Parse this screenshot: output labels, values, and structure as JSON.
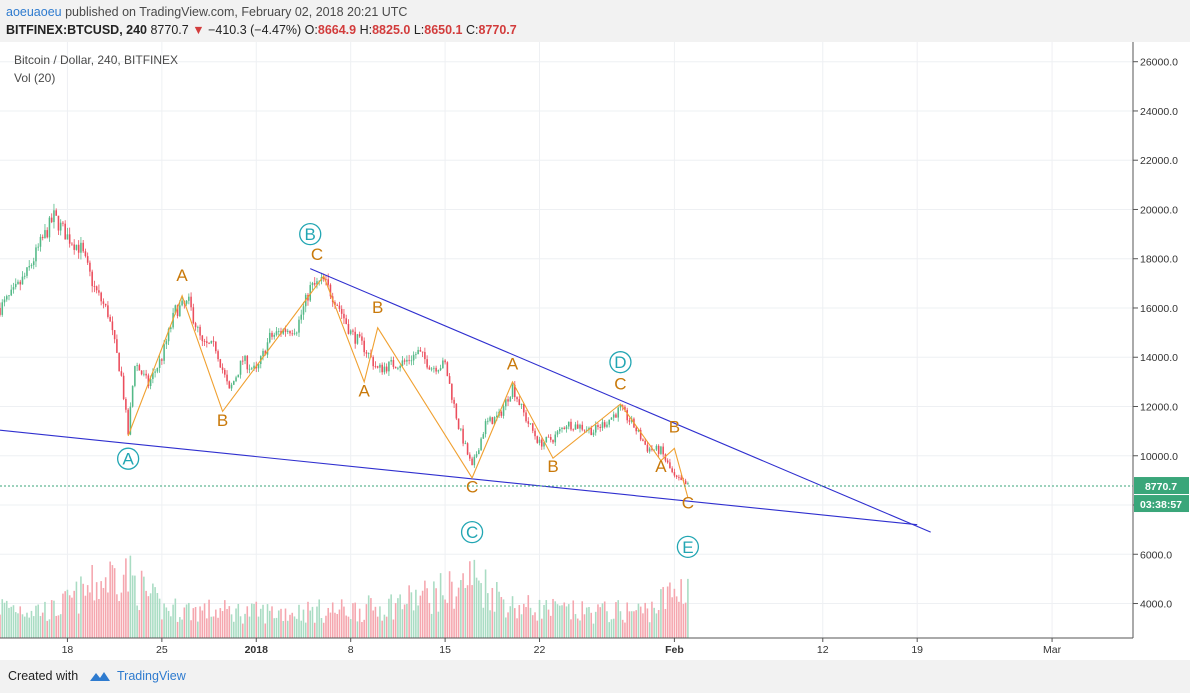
{
  "header": {
    "user": "aoeuaoeu",
    "published": " published on TradingView.com, February 02, 2018 20:21 UTC",
    "symbol": "BITFINEX:BTCUSD, 240",
    "last": "8770.7",
    "change": "−410.3 (−4.47%)",
    "open_label": "O:",
    "open": "8664.9",
    "high_label": "H:",
    "high": "8825.0",
    "low_label": "L:",
    "low": "8650.1",
    "close_label": "C:",
    "close": "8770.7"
  },
  "footer": {
    "created": "Created with",
    "brand": "TradingView"
  },
  "chart_data": {
    "type": "candlestick",
    "title": "Bitcoin / Dollar, 240, BITFINEX",
    "indicator": "Vol (20)",
    "ylim": [
      2600,
      26800
    ],
    "yticks": [
      "4000.0",
      "6000.0",
      "8000.0",
      "10000.0",
      "12000.0",
      "14000.0",
      "16000.0",
      "18000.0",
      "20000.0",
      "22000.0",
      "24000.0",
      "26000.0"
    ],
    "xticks": [
      "18",
      "25",
      "2018",
      "8",
      "15",
      "22",
      "Feb",
      "12",
      "19",
      "Mar"
    ],
    "xlim": [
      "2017-12-13",
      "2018-03-07"
    ],
    "last_price_label": "8770.7",
    "countdown_label": "03:38:57",
    "colors": {
      "up": "#53b987",
      "down": "#eb4d5c",
      "trendline": "#2f2fcf",
      "wave": "#f0a030",
      "label_abc": "#c9790a",
      "label_circle": "#22a6b3"
    },
    "price_path": [
      [
        "2017-12-13",
        16000
      ],
      [
        "2017-12-14",
        16600
      ],
      [
        "2017-12-15",
        17400
      ],
      [
        "2017-12-16",
        18600
      ],
      [
        "2017-12-17",
        19700
      ],
      [
        "2017-12-18",
        18900
      ],
      [
        "2017-12-19",
        18400
      ],
      [
        "2017-12-20",
        16800
      ],
      [
        "2017-12-21",
        15800
      ],
      [
        "2017-12-22",
        13200
      ],
      [
        "2017-12-22 12:00",
        10900
      ],
      [
        "2017-12-23",
        13800
      ],
      [
        "2017-12-24",
        12900
      ],
      [
        "2017-12-25",
        14000
      ],
      [
        "2017-12-26",
        15900
      ],
      [
        "2017-12-27",
        16200
      ],
      [
        "2017-12-28",
        14500
      ],
      [
        "2017-12-29",
        14400
      ],
      [
        "2017-12-30",
        12600
      ],
      [
        "2017-12-31",
        13900
      ],
      [
        "2018-01-01",
        13400
      ],
      [
        "2018-01-02",
        14800
      ],
      [
        "2018-01-03",
        15100
      ],
      [
        "2018-01-04",
        15200
      ],
      [
        "2018-01-05",
        16800
      ],
      [
        "2018-01-06",
        17100
      ],
      [
        "2018-01-07",
        16200
      ],
      [
        "2018-01-08",
        15000
      ],
      [
        "2018-01-09",
        14400
      ],
      [
        "2018-01-10",
        13500
      ],
      [
        "2018-01-11",
        13700
      ],
      [
        "2018-01-12",
        13800
      ],
      [
        "2018-01-13",
        14200
      ],
      [
        "2018-01-14",
        13600
      ],
      [
        "2018-01-15",
        13700
      ],
      [
        "2018-01-16",
        11200
      ],
      [
        "2018-01-17",
        9500
      ],
      [
        "2018-01-18",
        11300
      ],
      [
        "2018-01-19",
        11600
      ],
      [
        "2018-01-20",
        12800
      ],
      [
        "2018-01-21",
        11500
      ],
      [
        "2018-01-22",
        10500
      ],
      [
        "2018-01-23",
        10700
      ],
      [
        "2018-01-24",
        11300
      ],
      [
        "2018-01-25",
        11200
      ],
      [
        "2018-01-26",
        11000
      ],
      [
        "2018-01-27",
        11400
      ],
      [
        "2018-01-28",
        11900
      ],
      [
        "2018-01-29",
        11200
      ],
      [
        "2018-01-30",
        10300
      ],
      [
        "2018-01-31",
        10200
      ],
      [
        "2018-02-01",
        9100
      ],
      [
        "2018-02-02",
        8770
      ]
    ],
    "volume_profile": [
      [
        "2017-12-13",
        0.35
      ],
      [
        "2017-12-17",
        0.3
      ],
      [
        "2017-12-22",
        0.75
      ],
      [
        "2017-12-25",
        0.32
      ],
      [
        "2018-01-01",
        0.28
      ],
      [
        "2018-01-07",
        0.3
      ],
      [
        "2018-01-10",
        0.33
      ],
      [
        "2018-01-16",
        0.55
      ],
      [
        "2018-01-17",
        0.68
      ],
      [
        "2018-01-20",
        0.35
      ],
      [
        "2018-01-25",
        0.28
      ],
      [
        "2018-01-30",
        0.3
      ],
      [
        "2018-02-02",
        0.6
      ]
    ],
    "trendlines": [
      {
        "from": [
          "2017-12-11",
          11150
        ],
        "to": [
          "2018-02-19",
          7200
        ]
      },
      {
        "from": [
          "2018-01-05",
          17600
        ],
        "to": [
          "2018-02-20",
          6900
        ]
      }
    ],
    "wave_path": [
      [
        "2017-12-22 12:00",
        10800
      ],
      [
        "2017-12-26 12:00",
        16500
      ],
      [
        "2017-12-29 12:00",
        11800
      ],
      [
        "2018-01-06",
        17300
      ],
      [
        "2018-01-09",
        13000
      ],
      [
        "2018-01-10",
        15200
      ],
      [
        "2018-01-17",
        9100
      ],
      [
        "2018-01-20",
        13000
      ],
      [
        "2018-01-23",
        9900
      ],
      [
        "2018-01-28",
        12100
      ],
      [
        "2018-01-31",
        9800
      ],
      [
        "2018-02-01",
        10300
      ],
      [
        "2018-02-02",
        8300
      ]
    ],
    "wave_labels": [
      {
        "text": "A",
        "at": [
          "2017-12-26 12:00",
          17100
        ]
      },
      {
        "text": "B",
        "at": [
          "2017-12-29 12:00",
          11200
        ]
      },
      {
        "text": "C",
        "at": [
          "2018-01-05 12:00",
          17950
        ]
      },
      {
        "text": "B",
        "at": [
          "2018-01-10",
          15800
        ]
      },
      {
        "text": "A",
        "at": [
          "2018-01-09",
          12400
        ]
      },
      {
        "text": "C",
        "at": [
          "2018-01-17",
          8500
        ]
      },
      {
        "text": "A",
        "at": [
          "2018-01-20",
          13500
        ]
      },
      {
        "text": "B",
        "at": [
          "2018-01-23",
          9350
        ]
      },
      {
        "text": "C",
        "at": [
          "2018-01-28",
          12700
        ]
      },
      {
        "text": "A",
        "at": [
          "2018-01-31",
          9350
        ]
      },
      {
        "text": "B",
        "at": [
          "2018-02-01",
          10950
        ]
      },
      {
        "text": "C",
        "at": [
          "2018-02-02",
          7850
        ]
      }
    ],
    "circle_labels": [
      {
        "text": "A",
        "at": [
          "2017-12-22 12:00",
          9880
        ]
      },
      {
        "text": "B",
        "at": [
          "2018-01-05",
          19000
        ]
      },
      {
        "text": "C",
        "at": [
          "2018-01-17",
          6900
        ]
      },
      {
        "text": "D",
        "at": [
          "2018-01-28",
          13800
        ]
      },
      {
        "text": "E",
        "at": [
          "2018-02-02",
          6300
        ]
      }
    ]
  }
}
